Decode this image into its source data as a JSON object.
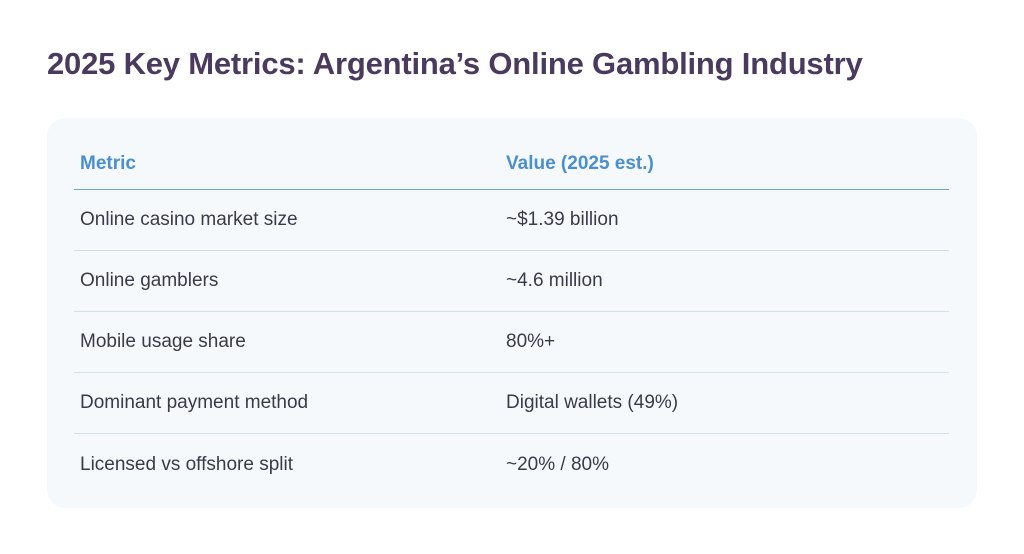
{
  "title": "2025 Key Metrics: Argentina’s Online Gambling Industry",
  "table": {
    "headers": {
      "metric": "Metric",
      "value": "Value (2025 est.)"
    },
    "rows": [
      {
        "metric": "Online casino market size",
        "value": "~$1.39 billion"
      },
      {
        "metric": "Online gamblers",
        "value": "~4.6 million"
      },
      {
        "metric": "Mobile usage share",
        "value": "80%+"
      },
      {
        "metric": "Dominant payment method",
        "value": "Digital wallets (49%)"
      },
      {
        "metric": "Licensed vs offshore split",
        "value": "~20% / 80%"
      }
    ]
  },
  "colors": {
    "title": "#4a3a5e",
    "header_text": "#4a8fd0",
    "header_rule": "#6aa6c9",
    "row_rule": "#cfe3e8",
    "card_bg": "#f6f9fc",
    "body_text": "#3b3b48"
  }
}
